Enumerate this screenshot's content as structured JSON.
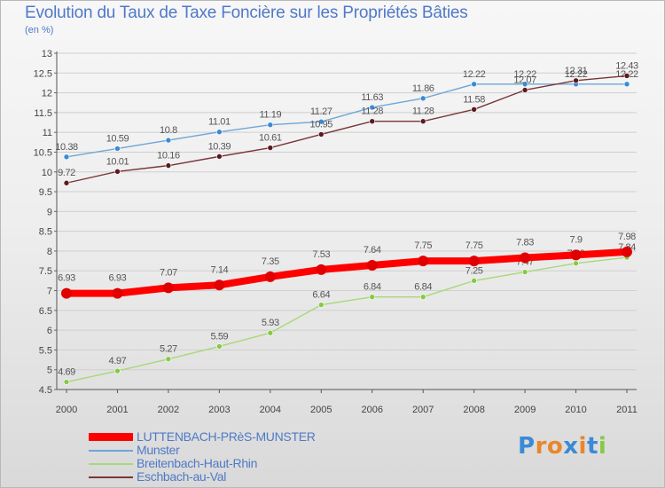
{
  "chart_data": {
    "type": "line",
    "title": "Evolution du Taux de Taxe Foncière sur les Propriétés Bâties",
    "unit_label": "(en %)",
    "x": [
      "2000",
      "2001",
      "2002",
      "2003",
      "2004",
      "2005",
      "2006",
      "2007",
      "2008",
      "2009",
      "2010",
      "2011"
    ],
    "ylim": [
      4.5,
      13
    ],
    "y_ticks": [
      "4.5",
      "5",
      "5.5",
      "6",
      "6.5",
      "7",
      "7.5",
      "8",
      "8.5",
      "9",
      "9.5",
      "10",
      "10.5",
      "11",
      "11.5",
      "12",
      "12.5",
      "13"
    ],
    "grid": "horizontal",
    "legend_position": "bottom-left",
    "series": [
      {
        "name": "Munster",
        "color": "#6ea6d8",
        "marker": "#3a8ad6",
        "values": [
          10.38,
          10.59,
          10.8,
          11.01,
          11.19,
          11.27,
          11.63,
          11.86,
          12.22,
          12.22,
          12.22,
          12.22
        ],
        "labels": [
          "10.38",
          "10.59",
          "10.8",
          "11.01",
          "11.19",
          "11.27",
          "11.63",
          "11.86",
          "12.22",
          "12.22",
          "12.22",
          "12.22"
        ]
      },
      {
        "name": "Eschbach-au-Val",
        "color": "#7a3538",
        "marker": "#5a1a1e",
        "values": [
          9.72,
          10.01,
          10.16,
          10.39,
          10.61,
          10.95,
          11.28,
          11.28,
          11.58,
          12.07,
          12.31,
          12.43
        ],
        "labels": [
          "9.72",
          "10.01",
          "10.16",
          "10.39",
          "10.61",
          "10.95",
          "11.28",
          "11.28",
          "11.58",
          "12.07",
          "12.31",
          "12.43"
        ]
      },
      {
        "name": "Breitenbach-Haut-Rhin",
        "color": "#a9d878",
        "marker": "#86c945",
        "values": [
          4.69,
          4.97,
          5.27,
          5.59,
          5.93,
          6.64,
          6.84,
          6.84,
          7.25,
          7.47,
          7.69,
          7.84
        ],
        "labels": [
          "4.69",
          "4.97",
          "5.27",
          "5.59",
          "5.93",
          "6.64",
          "6.84",
          "6.84",
          "7.25",
          "7.47",
          "7.69",
          "7.84"
        ]
      },
      {
        "name": "LUTTENBACH-PRèS-MUNSTER",
        "color": "#ff0000",
        "marker": "#e00000",
        "values": [
          6.93,
          6.93,
          7.07,
          7.14,
          7.35,
          7.53,
          7.64,
          7.75,
          7.75,
          7.83,
          7.9,
          7.98
        ],
        "labels": [
          "6.93",
          "6.93",
          "7.07",
          "7.14",
          "7.35",
          "7.53",
          "7.64",
          "7.75",
          "7.75",
          "7.83",
          "7.9",
          "7.98"
        ]
      }
    ],
    "legend": [
      {
        "name": "LUTTENBACH-PRèS-MUNSTER",
        "color": "#ff0000",
        "thick": true
      },
      {
        "name": "Munster",
        "color": "#6ea6d8",
        "thick": false
      },
      {
        "name": "Breitenbach-Haut-Rhin",
        "color": "#a9d878",
        "thick": false
      },
      {
        "name": "Eschbach-au-Val",
        "color": "#7a3538",
        "thick": false
      }
    ]
  },
  "logo": {
    "text": "Proxiti",
    "letter_colors": [
      "#3a8ad6",
      "#e8872c",
      "#e8872c",
      "#3a8ad6",
      "#e8872c",
      "#3a8ad6",
      "#86c945"
    ]
  }
}
